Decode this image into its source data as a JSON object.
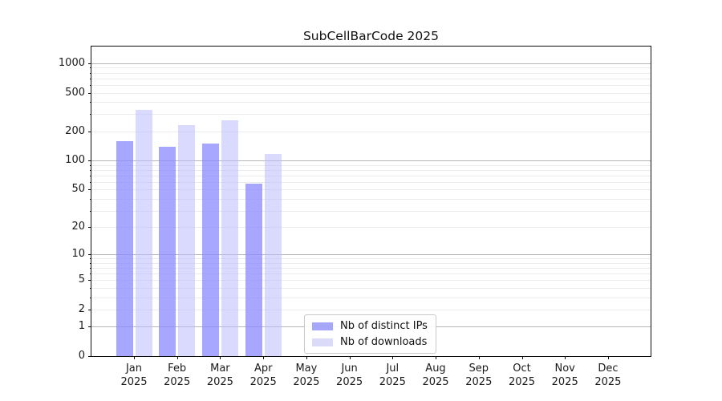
{
  "figure": {
    "background": "#ffffff"
  },
  "chart_data": {
    "type": "bar",
    "title": "SubCellBarCode 2025",
    "xlabel": "",
    "ylabel": "",
    "year": "2025",
    "months": [
      "Jan",
      "Feb",
      "Mar",
      "Apr",
      "May",
      "Jun",
      "Jul",
      "Aug",
      "Sep",
      "Oct",
      "Nov",
      "Dec"
    ],
    "series": [
      {
        "name": "Nb of distinct IPs",
        "legend_color": "#a7a7fa",
        "fill_rgba": "rgba(137,137,255,0.75)",
        "values": [
          160,
          140,
          150,
          57,
          null,
          null,
          null,
          null,
          null,
          null,
          null,
          null
        ]
      },
      {
        "name": "Nb of downloads",
        "legend_color": "#dbdbf9",
        "fill_rgba": "rgba(187,187,255,0.55)",
        "values": [
          330,
          230,
          260,
          117,
          null,
          null,
          null,
          null,
          null,
          null,
          null,
          null
        ]
      }
    ],
    "yscale": "log1p",
    "ylim": [
      0,
      1486
    ],
    "ytick_labels": [
      "1000",
      "500",
      "200",
      "100",
      "50",
      "20",
      "10",
      "5",
      "2",
      "1",
      "0"
    ],
    "ytick_values": [
      1000,
      500,
      200,
      100,
      50,
      20,
      10,
      5,
      2,
      1,
      0
    ],
    "grid": {
      "major_values": [
        1,
        10,
        100,
        1000
      ],
      "minor_values": [
        2,
        3,
        4,
        5,
        6,
        7,
        8,
        9,
        20,
        30,
        40,
        50,
        60,
        70,
        80,
        90,
        200,
        300,
        400,
        500,
        600,
        700,
        800,
        900
      ],
      "major_color": "#b6b6b6",
      "minor_color": "#ebebeb",
      "on": true
    },
    "legend": {
      "location": "inside-lower-center",
      "border_color": "#c9c9c9"
    },
    "axis_color": "#0d0d0d",
    "text_color": "#1a1a1a"
  }
}
